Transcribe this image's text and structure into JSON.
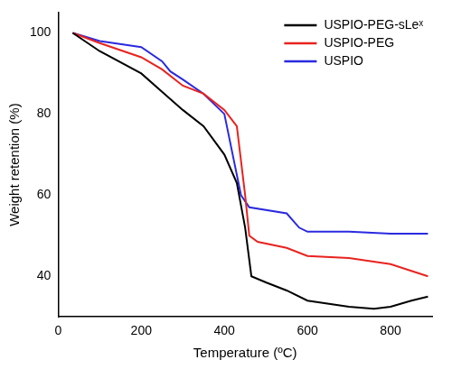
{
  "chart_data": {
    "type": "line",
    "x_label": "Temperature (ºC)",
    "y_label": "Weight retention (%)",
    "xlim": [
      0,
      900
    ],
    "xticks": [
      0,
      200,
      400,
      600,
      800
    ],
    "ylim": [
      30,
      105
    ],
    "yticks": [
      40,
      60,
      80,
      100
    ],
    "grid": false,
    "legend": "upper right",
    "series": [
      {
        "name": "USPIO-PEG-sLeˣ",
        "color": "#000000",
        "marker": "none",
        "line_style": "solid",
        "x": [
          35,
          100,
          200,
          250,
          300,
          350,
          400,
          430,
          450,
          465,
          500,
          550,
          600,
          700,
          760,
          800,
          850,
          890
        ],
        "values": [
          100,
          95.5,
          90,
          85.5,
          81,
          77,
          70,
          63,
          52,
          40,
          38.5,
          36.5,
          34,
          32.5,
          32,
          32.5,
          34,
          35
        ]
      },
      {
        "name": "USPIO-PEG",
        "color": "#e8231f",
        "marker": "none",
        "line_style": "solid",
        "x": [
          35,
          100,
          200,
          250,
          300,
          350,
          400,
          430,
          450,
          460,
          480,
          550,
          600,
          700,
          800,
          890
        ],
        "values": [
          100,
          97.5,
          94,
          91,
          87,
          85,
          81,
          77,
          60,
          50,
          48.5,
          47,
          45,
          44.5,
          43,
          40
        ]
      },
      {
        "name": "USPIO",
        "color": "#2a2ae0",
        "marker": "none",
        "line_style": "solid",
        "x": [
          35,
          100,
          200,
          250,
          270,
          300,
          350,
          400,
          420,
          440,
          460,
          550,
          580,
          600,
          700,
          800,
          890
        ],
        "values": [
          100,
          98,
          96.5,
          93,
          90.5,
          88.5,
          85,
          80,
          70,
          60,
          57,
          55.5,
          52,
          51,
          51,
          50.5,
          50.5
        ]
      }
    ]
  }
}
